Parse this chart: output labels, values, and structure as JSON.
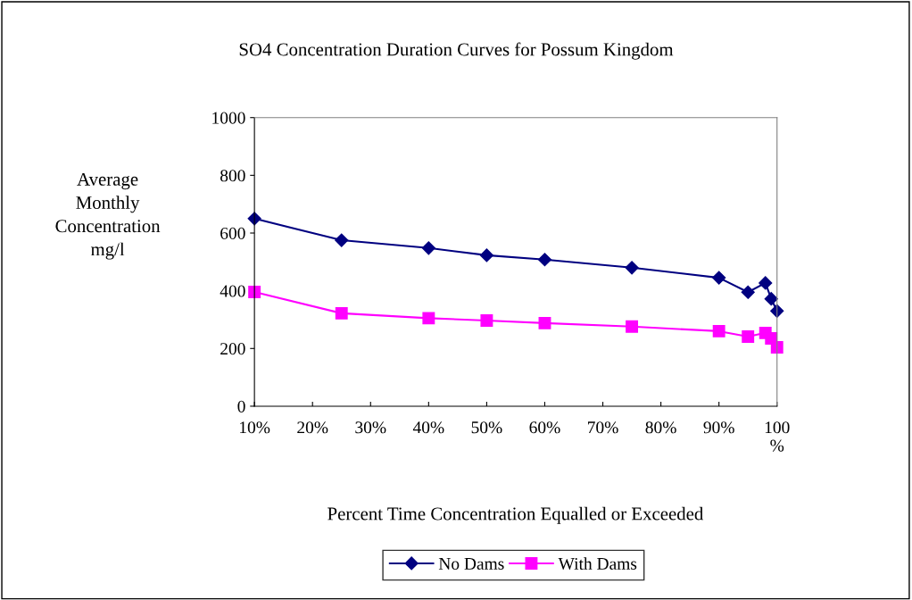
{
  "chart_data": {
    "type": "line",
    "title": "SO4 Concentration Duration Curves for Possum Kingdom",
    "xlabel": "Percent Time Concentration Equalled or Exceeded",
    "ylabel": "Average\nMonthly\nConcentration\nmg/l",
    "x": [
      10,
      25,
      40,
      50,
      60,
      75,
      90,
      95,
      98,
      99,
      100
    ],
    "series": [
      {
        "name": "No Dams",
        "color": "#000080",
        "marker": "diamond",
        "values": [
          650,
          575,
          548,
          523,
          508,
          480,
          445,
          395,
          427,
          372,
          330
        ]
      },
      {
        "name": "With Dams",
        "color": "#ff00ff",
        "marker": "square",
        "values": [
          396,
          322,
          305,
          297,
          288,
          276,
          260,
          241,
          254,
          235,
          204
        ]
      }
    ],
    "xlim": [
      10,
      100
    ],
    "xticks": [
      {
        "value": 10,
        "label": "10%"
      },
      {
        "value": 20,
        "label": "20%"
      },
      {
        "value": 30,
        "label": "30%"
      },
      {
        "value": 40,
        "label": "40%"
      },
      {
        "value": 50,
        "label": "50%"
      },
      {
        "value": 60,
        "label": "60%"
      },
      {
        "value": 70,
        "label": "70%"
      },
      {
        "value": 80,
        "label": "80%"
      },
      {
        "value": 90,
        "label": "90%"
      },
      {
        "value": 100,
        "label": "100\n%"
      }
    ],
    "ylim": [
      0,
      1000
    ],
    "yticks": [
      0,
      200,
      400,
      600,
      800,
      1000
    ],
    "grid": false,
    "legend": "bottom",
    "line_style": "solid"
  }
}
